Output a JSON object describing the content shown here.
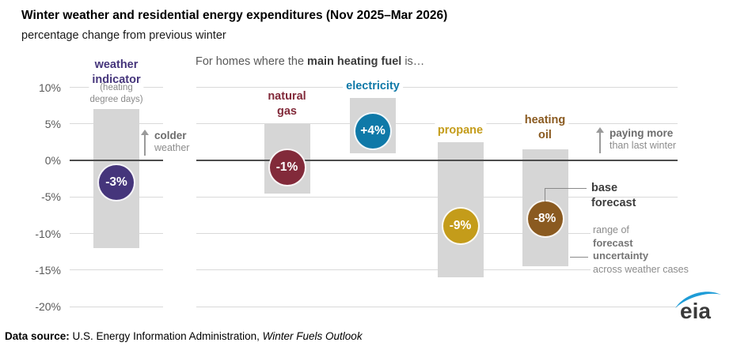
{
  "header": {
    "title": "Winter weather and residential energy expenditures (Nov 2025–Mar 2026)",
    "subtitle": "percentage change from previous winter",
    "caption_prefix": "For homes where the ",
    "caption_bold": "main heating fuel",
    "caption_suffix": " is…"
  },
  "chart_data": {
    "type": "bar",
    "title": "Winter weather and residential energy expenditures (Nov 2025–Mar 2026)",
    "subtitle": "percentage change from previous winter",
    "ylabel": "percentage change from previous winter",
    "ylim": [
      -20,
      10
    ],
    "ytick_values": [
      10,
      5,
      0,
      -5,
      -10,
      -15,
      -20
    ],
    "ytick_labels": [
      "10%",
      "5%",
      "0%",
      "-5%",
      "-10%",
      "-15%",
      "-20%"
    ],
    "grid": true,
    "bar_color": "#d6d6d6",
    "legend_position": "none",
    "series": [
      {
        "name": "weather indicator",
        "label_lines": [
          "weather",
          "indicator"
        ],
        "sublabel": "(heating degree days)",
        "sublabel_lines": [
          "(heating",
          "degree days)"
        ],
        "base_forecast_pct": -3,
        "value_label": "-3%",
        "uncertainty_range_pct": [
          -12,
          7
        ],
        "color": "#45357b"
      },
      {
        "name": "natural gas",
        "label_lines": [
          "natural",
          "gas"
        ],
        "base_forecast_pct": -1,
        "value_label": "-1%",
        "uncertainty_range_pct": [
          -4.5,
          5
        ],
        "color": "#822a3a"
      },
      {
        "name": "electricity",
        "label_lines": [
          "electricity"
        ],
        "base_forecast_pct": 4,
        "value_label": "+4%",
        "uncertainty_range_pct": [
          1,
          8.5
        ],
        "color": "#0f79a8"
      },
      {
        "name": "propane",
        "label_lines": [
          "propane"
        ],
        "base_forecast_pct": -9,
        "value_label": "-9%",
        "uncertainty_range_pct": [
          -16,
          2.5
        ],
        "color": "#c49c1a"
      },
      {
        "name": "heating oil",
        "label_lines": [
          "heating",
          "oil"
        ],
        "base_forecast_pct": -8,
        "value_label": "-8%",
        "uncertainty_range_pct": [
          -14.5,
          1.5
        ],
        "color": "#8a5a20"
      }
    ],
    "annotations": [
      "colder weather",
      "paying more than last winter",
      "base forecast",
      "range of forecast uncertainty across weather cases"
    ]
  },
  "annotations": {
    "colder_line1": "colder",
    "colder_line2": "weather",
    "paying_line1": "paying more",
    "paying_line2": "than last winter",
    "base_line1": "base",
    "base_line2": "forecast",
    "unc_line1": "range of",
    "unc_line2": "forecast",
    "unc_line3": "uncertainty",
    "unc_line4": "across weather cases"
  },
  "footer": {
    "label": "Data source:",
    "text": " U.S. Energy Information Administration, ",
    "publication": "Winter Fuels Outlook"
  },
  "logo": {
    "text": "eia"
  }
}
